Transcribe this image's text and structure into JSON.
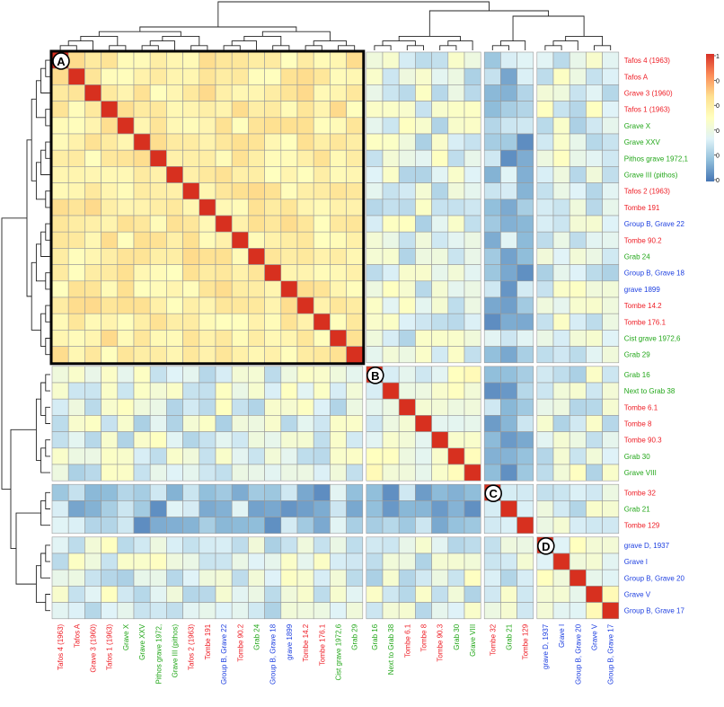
{
  "chart_data": {
    "type": "heatmap",
    "title": "",
    "xlabel": "",
    "ylabel": "",
    "labels": [
      "Tafos 4 (1963)",
      "Tafos A",
      "Grave 3 (1960)",
      "Tafos 1 (1963)",
      "Grave X",
      "Grave XXV",
      "Pithos grave 1972,1",
      "Grave III (pithos)",
      "Tafos 2 (1963)",
      "Tombe 191",
      "Group B, Grave 22",
      "Tombe 90.2",
      "Grab 24",
      "Group B, Grave 18",
      "grave 1899",
      "Tombe 14.2",
      "Tombe 176.1",
      "Cist grave 1972,6",
      "Grab 29",
      "Grab 16",
      "Next to Grab 38",
      "Tombe 6.1",
      "Tombe 8",
      "Tombe 90.3",
      "Grab 30",
      "Grave VIII",
      "Tombe 32",
      "Grab 21",
      "Tombe 129",
      "grave D, 1937",
      "Grave I",
      "Group B, Grave 20",
      "Grave V",
      "Group B, Grave 17"
    ],
    "x_tick_labels": [
      "Tafos 4 (1963)",
      "Tafos A",
      "Grave 3 (1960)",
      "Tafos 1 (1963)",
      "Grave X",
      "Grave XXV",
      "Pithos grave 1972,",
      "Grave III (pithos)",
      "Tafos 2 (1963)",
      "Tombe 191",
      "Group B, Grave 22",
      "Tombe 90.2",
      "Grab 24",
      "Group B, Grave 18",
      "grave 1899",
      "Tombe 14.2",
      "Tombe 176.1",
      "Cist grave 1972,6",
      "Grab 29",
      "Grab 16",
      "Next to Grab 38",
      "Tombe 6.1",
      "Tombe 8",
      "Tombe 90.3",
      "Grab 30",
      "Grave VIII",
      "Tombe 32",
      "Grab 21",
      "Tombe 129",
      "grave D, 1937",
      "Grave I",
      "Group B, Grave 20",
      "Grave V",
      "Group B, Grave 17"
    ],
    "label_colors": [
      "red",
      "red",
      "red",
      "red",
      "green",
      "green",
      "green",
      "green",
      "red",
      "red",
      "blue",
      "red",
      "green",
      "blue",
      "blue",
      "red",
      "red",
      "green",
      "green",
      "green",
      "green",
      "red",
      "red",
      "red",
      "green",
      "green",
      "red",
      "green",
      "red",
      "blue",
      "blue",
      "blue",
      "blue",
      "blue"
    ],
    "clusters": [
      {
        "name": "A",
        "size": 19
      },
      {
        "name": "B",
        "size": 7
      },
      {
        "name": "C",
        "size": 3
      },
      {
        "name": "D",
        "size": 5
      }
    ],
    "colorbar": {
      "colors": [
        "#4575b4",
        "#91bfdb",
        "#e0f3f8",
        "#ffffbf",
        "#fee090",
        "#fc8d59",
        "#d73027"
      ],
      "tick_labels": [
        "1",
        "0",
        "0",
        "0",
        "0",
        "0"
      ]
    },
    "dendrogram": true
  },
  "palette": {
    "red": "#ee1c24",
    "green": "#23a71a",
    "blue": "#1d3fe0",
    "cell_border": "#9a9a9a",
    "diagonal": "#d7301f"
  }
}
